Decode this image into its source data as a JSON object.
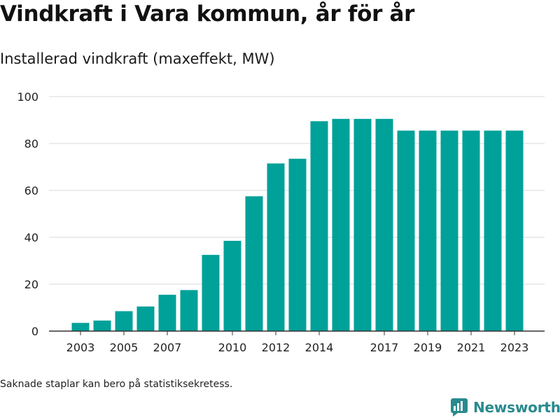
{
  "header": {
    "title": "Vindkraft i Vara kommun, år för år",
    "subtitle": "Installerad vindkraft (maxeffekt, MW)"
  },
  "footer": {
    "note": "Saknade staplar kan bero på statistiksekretess.",
    "brand": "Newsworthy"
  },
  "colors": {
    "bar": "#00a199",
    "grid": "#d9d9d9",
    "axis": "#333333",
    "brand": "#2a8a8e"
  },
  "chart_data": {
    "type": "bar",
    "categories": [
      "2003",
      "2004",
      "2005",
      "2006",
      "2007",
      "2008",
      "2009",
      "2010",
      "2011",
      "2012",
      "2013",
      "2014",
      "2015",
      "2016",
      "2017",
      "2018",
      "2019",
      "2020",
      "2021",
      "2022",
      "2023"
    ],
    "values": [
      3.5,
      4.5,
      8.5,
      10.5,
      15.5,
      17.5,
      32.5,
      38.5,
      57.5,
      71.5,
      73.5,
      89.5,
      90.5,
      90.5,
      90.5,
      85.5,
      85.5,
      85.5,
      85.5,
      85.5,
      85.5
    ],
    "xtick_labels": [
      "2003",
      "2005",
      "2007",
      "2010",
      "2012",
      "2014",
      "2017",
      "2019",
      "2021",
      "2023"
    ],
    "yticks": [
      0,
      20,
      40,
      60,
      80,
      100
    ],
    "ylim": [
      0,
      100
    ],
    "grid": true,
    "xlabel": "",
    "ylabel": ""
  }
}
